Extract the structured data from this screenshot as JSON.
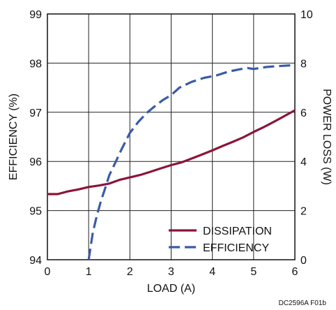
{
  "chart_data": {
    "type": "line",
    "xlabel": "LOAD (A)",
    "ylabel_left": "EFFICIENCY (%)",
    "ylabel_right": "POWER LOSS (W)",
    "xlim": [
      0,
      6
    ],
    "ylim_left": [
      94,
      99
    ],
    "ylim_right": [
      0,
      10
    ],
    "x_ticks": [
      "0",
      "1",
      "2",
      "3",
      "4",
      "5",
      "6"
    ],
    "y_ticks_left": [
      "94",
      "95",
      "96",
      "97",
      "98",
      "99"
    ],
    "y_ticks_right": [
      "0",
      "2",
      "4",
      "6",
      "8",
      "10"
    ],
    "grid": true,
    "legend_position": "bottom-right",
    "footnote": "DC2596A F01b",
    "series": [
      {
        "name": "DISSIPATION",
        "axis": "right",
        "color": "#8b1538",
        "style": "solid",
        "points": [
          [
            0,
            2.67
          ],
          [
            0.25,
            2.67
          ],
          [
            0.5,
            2.78
          ],
          [
            0.75,
            2.86
          ],
          [
            1.0,
            2.96
          ],
          [
            1.25,
            3.02
          ],
          [
            1.5,
            3.1
          ],
          [
            1.75,
            3.25
          ],
          [
            2.0,
            3.35
          ],
          [
            2.25,
            3.45
          ],
          [
            2.5,
            3.58
          ],
          [
            2.75,
            3.72
          ],
          [
            3.0,
            3.85
          ],
          [
            3.25,
            3.96
          ],
          [
            3.5,
            4.12
          ],
          [
            3.75,
            4.28
          ],
          [
            4.0,
            4.45
          ],
          [
            4.25,
            4.63
          ],
          [
            4.5,
            4.8
          ],
          [
            4.75,
            4.98
          ],
          [
            5.0,
            5.2
          ],
          [
            5.25,
            5.4
          ],
          [
            5.5,
            5.62
          ],
          [
            5.75,
            5.85
          ],
          [
            6.0,
            6.08
          ]
        ]
      },
      {
        "name": "EFFICIENCY",
        "axis": "left",
        "color": "#3a5ba8",
        "style": "dashed",
        "points": [
          [
            1.0,
            94.0
          ],
          [
            1.1,
            94.55
          ],
          [
            1.2,
            94.9
          ],
          [
            1.3,
            95.2
          ],
          [
            1.4,
            95.45
          ],
          [
            1.5,
            95.72
          ],
          [
            1.65,
            95.98
          ],
          [
            1.8,
            96.25
          ],
          [
            2.0,
            96.58
          ],
          [
            2.2,
            96.8
          ],
          [
            2.4,
            96.98
          ],
          [
            2.6,
            97.12
          ],
          [
            2.8,
            97.25
          ],
          [
            3.0,
            97.35
          ],
          [
            3.2,
            97.5
          ],
          [
            3.5,
            97.62
          ],
          [
            3.8,
            97.7
          ],
          [
            4.1,
            97.75
          ],
          [
            4.4,
            97.83
          ],
          [
            4.7,
            97.88
          ],
          [
            4.85,
            97.9
          ],
          [
            5.0,
            97.88
          ],
          [
            5.3,
            97.92
          ],
          [
            5.6,
            97.94
          ],
          [
            6.0,
            97.96
          ]
        ]
      }
    ]
  }
}
